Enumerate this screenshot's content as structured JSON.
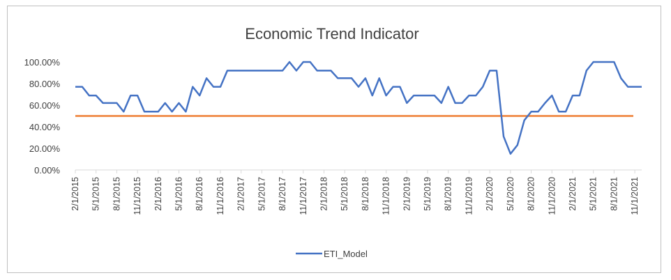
{
  "chart_data": {
    "type": "line",
    "title": "Economic Trend Indicator",
    "xlabel": "",
    "ylabel": "",
    "ylim": [
      0,
      100
    ],
    "y_ticks": [
      "0.00%",
      "20.00%",
      "40.00%",
      "60.00%",
      "80.00%",
      "100.00%"
    ],
    "x_tick_labels": [
      "2/1/2015",
      "5/1/2015",
      "8/1/2015",
      "11/1/2015",
      "2/1/2016",
      "5/1/2016",
      "8/1/2016",
      "11/1/2016",
      "2/1/2017",
      "5/1/2017",
      "8/1/2017",
      "11/1/2017",
      "2/1/2018",
      "5/1/2018",
      "8/1/2018",
      "11/1/2018",
      "2/1/2019",
      "5/1/2019",
      "8/1/2019",
      "11/1/2019",
      "2/1/2020",
      "5/1/2020",
      "8/1/2020",
      "11/1/2020",
      "2/1/2021",
      "5/1/2021",
      "8/1/2021",
      "11/1/2021"
    ],
    "x_start": "2/1/2015",
    "grid": "none",
    "legend_position": "bottom",
    "threshold": {
      "value": 50,
      "color": "#ED7D31"
    },
    "series": [
      {
        "name": "ETI_Model",
        "color": "#4472C4",
        "values": [
          77,
          77,
          69,
          69,
          62,
          62,
          62,
          54,
          69,
          69,
          54,
          54,
          54,
          62,
          54,
          62,
          54,
          77,
          69,
          85,
          77,
          77,
          92,
          92,
          92,
          92,
          92,
          92,
          92,
          92,
          92,
          100,
          92,
          100,
          100,
          92,
          92,
          92,
          85,
          85,
          85,
          77,
          85,
          69,
          85,
          69,
          77,
          77,
          62,
          69,
          69,
          69,
          69,
          62,
          77,
          62,
          62,
          69,
          69,
          77,
          92,
          92,
          31,
          15,
          23,
          46,
          54,
          54,
          62,
          69,
          54,
          54,
          69,
          69,
          92,
          100,
          100,
          100,
          100,
          85,
          77,
          77,
          77
        ]
      }
    ]
  }
}
